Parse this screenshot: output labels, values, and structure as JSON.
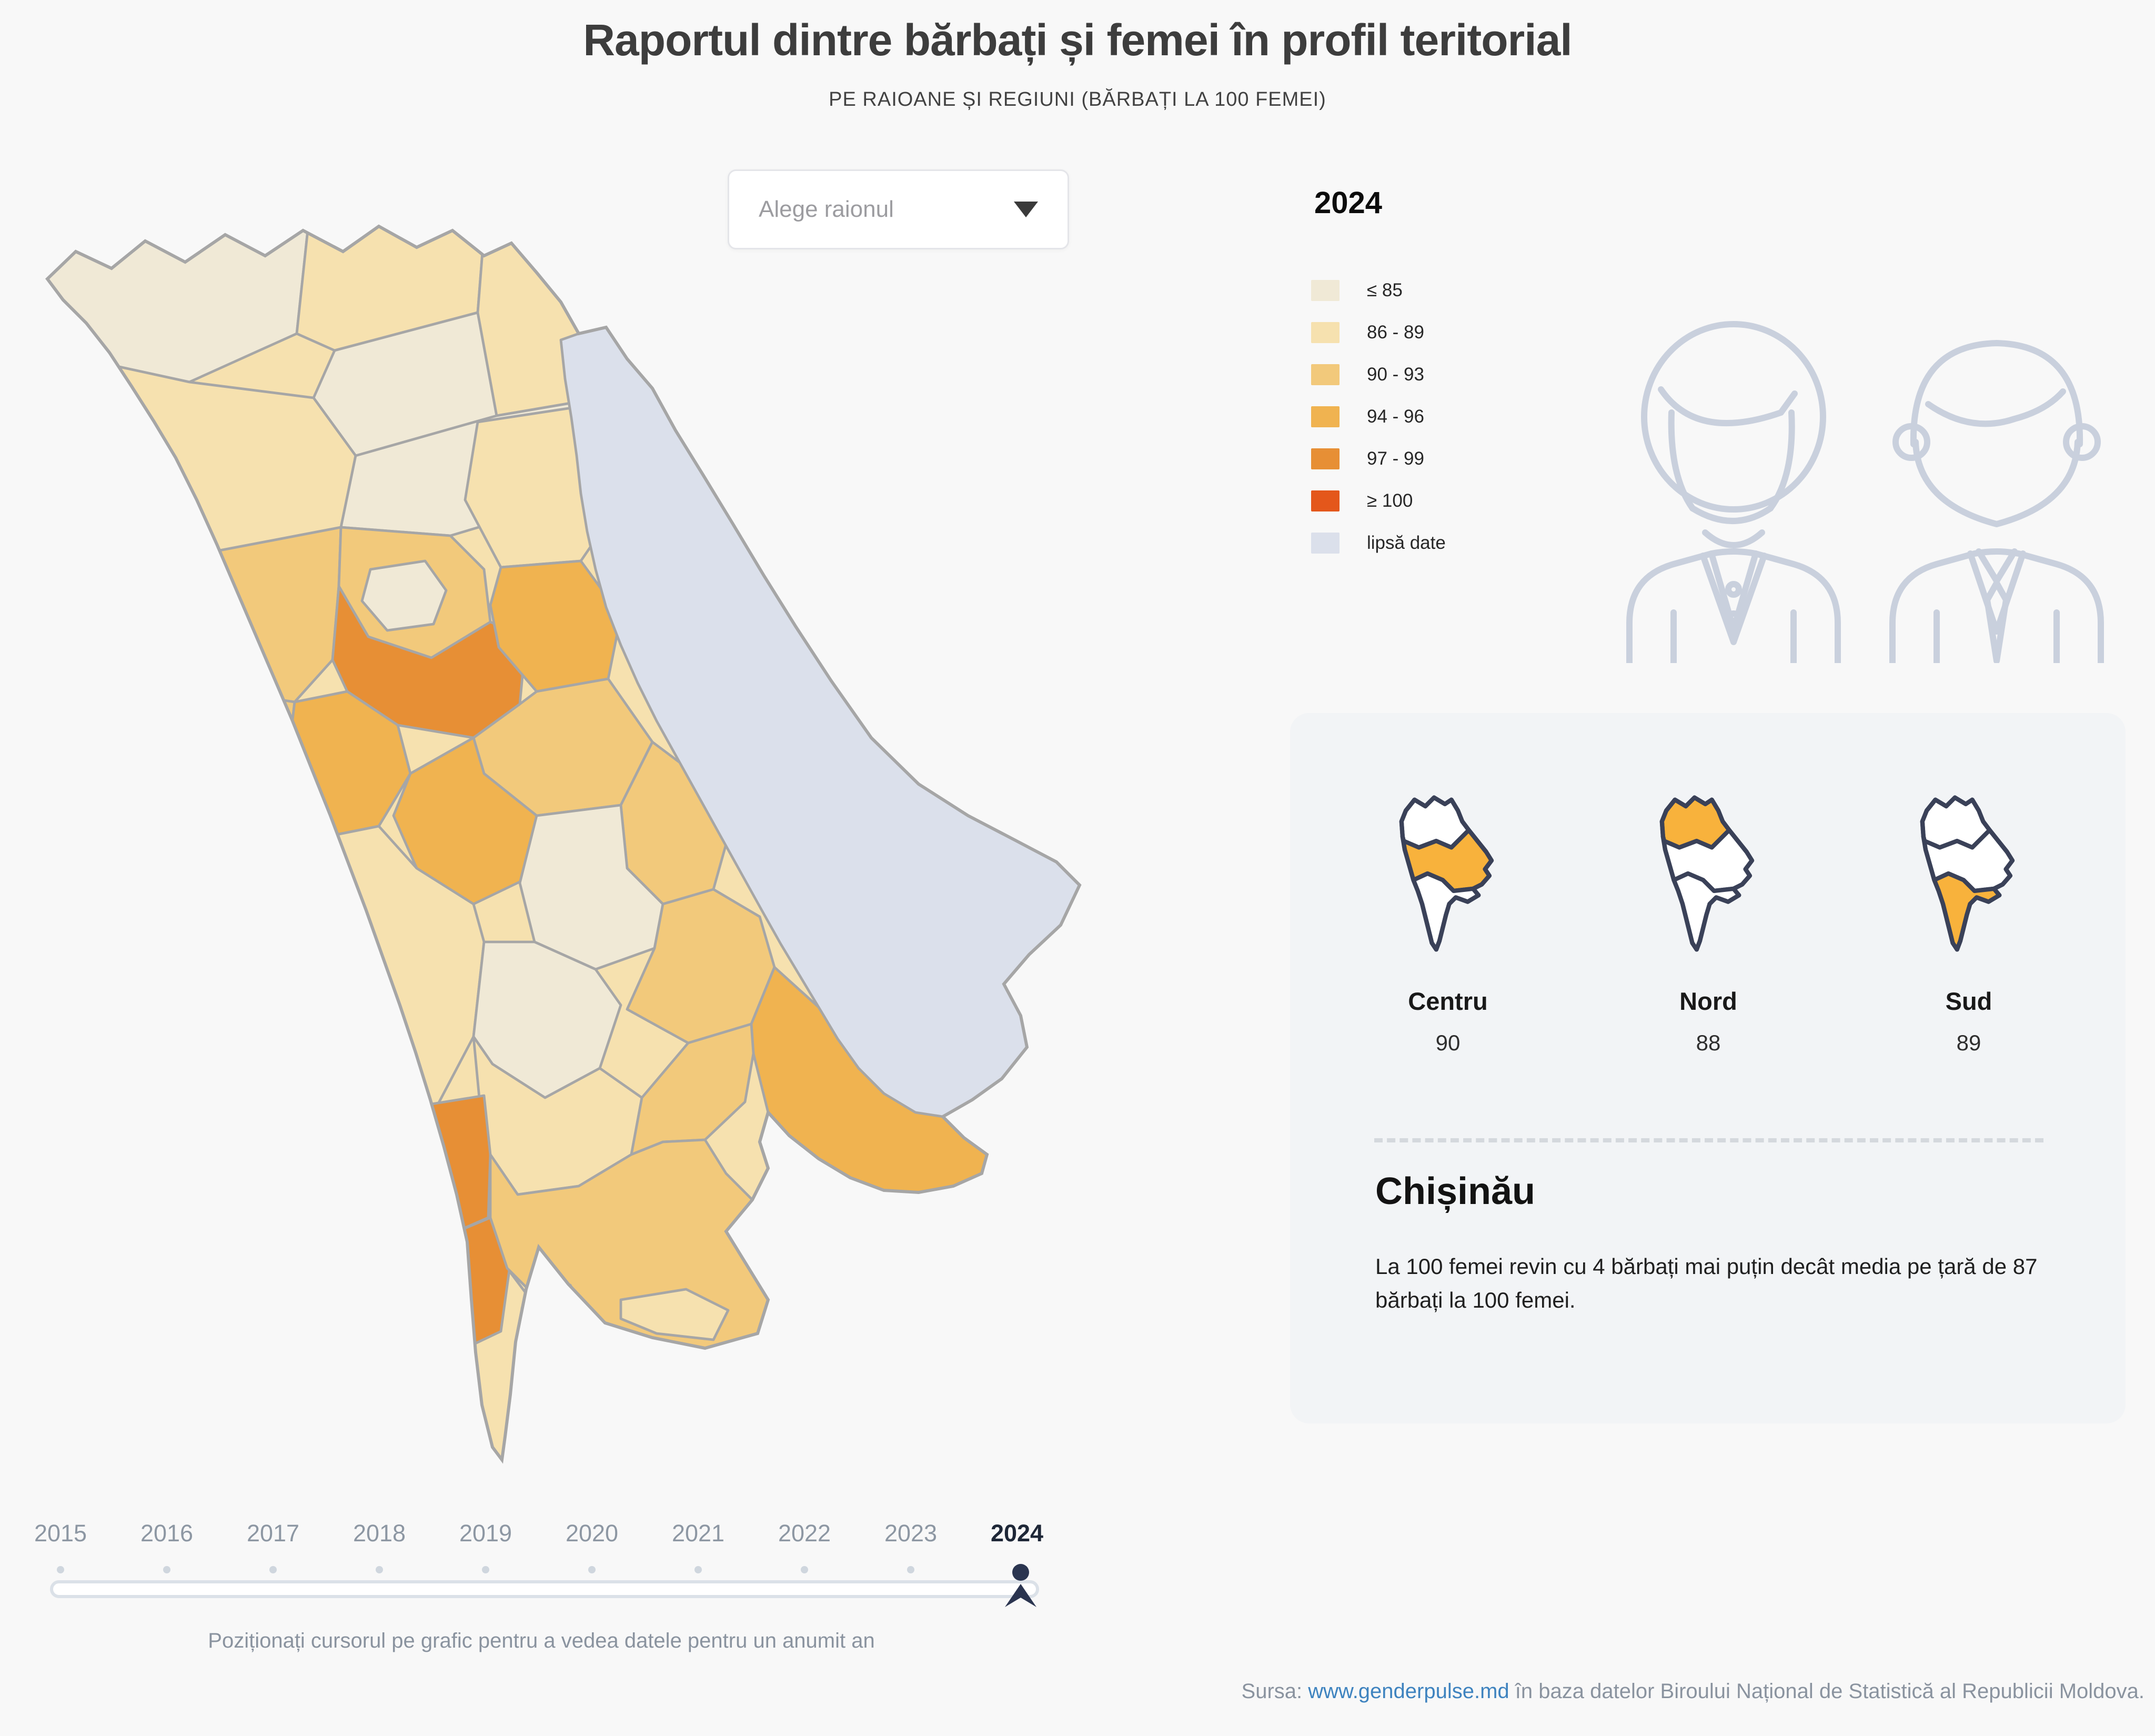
{
  "header": {
    "title": "Raportul dintre bărbați și femei în profil teritorial",
    "subtitle": "PE RAIOANE ȘI REGIUNI (BĂRBAȚI LA 100 FEMEI)"
  },
  "controls": {
    "district_select_placeholder": "Alege raionul"
  },
  "icons": {
    "dropdown_caret": "chevron-down-icon",
    "couple": "woman-and-man-outline-icon",
    "slider_cursor": "person-marker-icon"
  },
  "chart_data": {
    "type": "choropleth",
    "title": "Raportul dintre bărbați și femei în profil teritorial",
    "subtitle": "PE RAIOANE ȘI REGIUNI (BĂRBAȚI LA 100 FEMEI)",
    "unit": "bărbați la 100 femei",
    "year_selected": "2024",
    "years": [
      "2015",
      "2016",
      "2017",
      "2018",
      "2019",
      "2020",
      "2021",
      "2022",
      "2023",
      "2024"
    ],
    "legend": {
      "title": "2024",
      "classes": [
        {
          "key": "le85",
          "label": "≤ 85",
          "color": "#f0e9d6"
        },
        {
          "key": "c8689",
          "label": "86 - 89",
          "color": "#f6e1af"
        },
        {
          "key": "c9093",
          "label": "90 - 93",
          "color": "#f2c97b"
        },
        {
          "key": "c9496",
          "label": "94 - 96",
          "color": "#f0b350"
        },
        {
          "key": "c9799",
          "label": "97 - 99",
          "color": "#e78f35"
        },
        {
          "key": "ge100",
          "label": "≥ 100",
          "color": "#e4571b"
        },
        {
          "key": "nodata",
          "label": "lipsă date",
          "color": "#dbe0eb"
        }
      ]
    },
    "regions": [
      {
        "key": "centru",
        "name": "Centru",
        "value": "90"
      },
      {
        "key": "nord",
        "name": "Nord",
        "value": "88"
      },
      {
        "key": "sud",
        "name": "Sud",
        "value": "89"
      }
    ],
    "national_average": "87",
    "capital_note": {
      "name": "Chișinău",
      "text": "La 100 femei revin cu 4 bărbați mai puțin decât media pe țară de 87 bărbați la 100 femei."
    },
    "map_highlight_color": "#f8b23c",
    "map_border_color": "#a6a6a6",
    "districts": [
      {
        "id": "d01",
        "class": "le85"
      },
      {
        "id": "d02",
        "class": "c8689"
      },
      {
        "id": "d03",
        "class": "le85"
      },
      {
        "id": "d04",
        "class": "c8689"
      },
      {
        "id": "d05",
        "class": "c8689"
      },
      {
        "id": "d06",
        "class": "le85"
      },
      {
        "id": "d07",
        "class": "c8689"
      },
      {
        "id": "d08",
        "class": "c9093"
      },
      {
        "id": "d09",
        "class": "c9093"
      },
      {
        "id": "d10",
        "class": "c9093"
      },
      {
        "id": "d11",
        "class": "c8689"
      },
      {
        "id": "d12",
        "class": "c9799"
      },
      {
        "id": "d13",
        "class": "le85"
      },
      {
        "id": "d14",
        "class": "c9496"
      },
      {
        "id": "d15",
        "class": "c9093"
      },
      {
        "id": "d16",
        "class": "c9093"
      },
      {
        "id": "d17",
        "class": "c9496"
      },
      {
        "id": "d18",
        "class": "c9496"
      },
      {
        "id": "d19",
        "class": "c9093"
      },
      {
        "id": "d20",
        "class": "c9496"
      },
      {
        "id": "d21",
        "class": "c8689"
      },
      {
        "id": "d22",
        "class": "le85"
      },
      {
        "id": "d23",
        "class": "le85"
      },
      {
        "id": "d24",
        "class": "c9093"
      },
      {
        "id": "d25",
        "class": "c9496"
      },
      {
        "id": "d26",
        "class": "c8689"
      },
      {
        "id": "d27",
        "class": "c9093"
      },
      {
        "id": "d28",
        "class": "c9799"
      },
      {
        "id": "d29",
        "class": "c9799"
      },
      {
        "id": "d30",
        "class": "c9093"
      },
      {
        "id": "d31",
        "class": "c8689"
      },
      {
        "id": "d32",
        "class": "c9496"
      },
      {
        "id": "d33",
        "class": "nodata"
      }
    ]
  },
  "timeline": {
    "hint": "Poziționați cursorul pe grafic pentru a vedea datele pentru un anumit an"
  },
  "footer": {
    "source_prefix": "Sursa:",
    "source_link": "www.genderpulse.md",
    "source_suffix": "în baza datelor Biroului Național de Statistică al Republicii Moldova."
  }
}
